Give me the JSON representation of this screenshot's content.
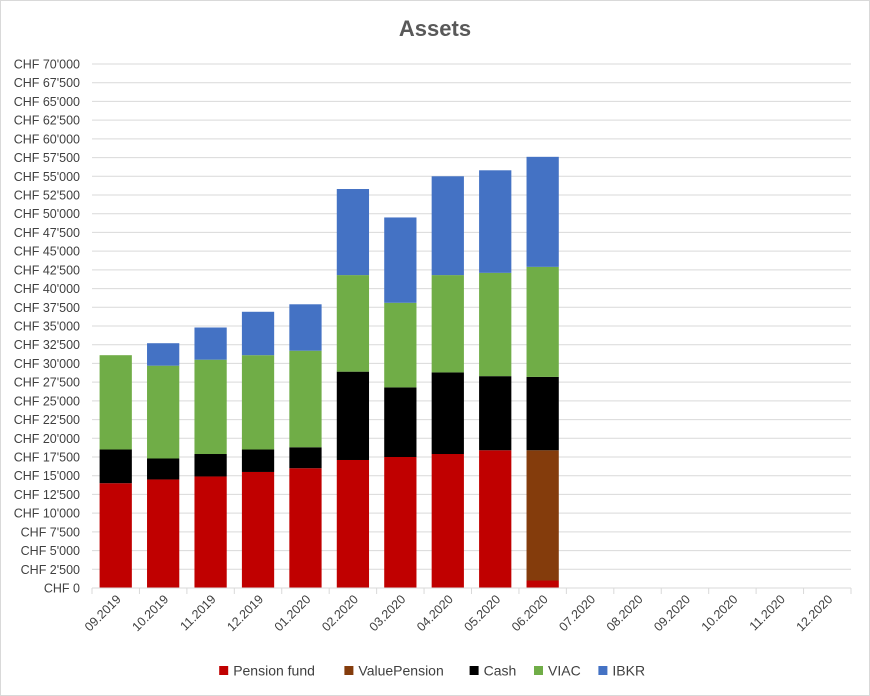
{
  "chart_data": {
    "type": "bar",
    "stacked": true,
    "title": "Assets",
    "xlabel": "",
    "ylabel": "",
    "ylim": [
      0,
      70000
    ],
    "y_ticks": [
      0,
      2500,
      5000,
      7500,
      10000,
      12500,
      15000,
      17500,
      20000,
      22500,
      25000,
      27500,
      30000,
      32500,
      35000,
      37500,
      40000,
      42500,
      45000,
      47500,
      50000,
      52500,
      55000,
      57500,
      60000,
      62500,
      65000,
      67500,
      70000
    ],
    "y_tick_labels": [
      "CHF 0",
      "CHF 2'500",
      "CHF 5'000",
      "CHF 7'500",
      "CHF 10'000",
      "CHF 12'500",
      "CHF 15'000",
      "CHF 17'500",
      "CHF 20'000",
      "CHF 22'500",
      "CHF 25'000",
      "CHF 27'500",
      "CHF 30'000",
      "CHF 32'500",
      "CHF 35'000",
      "CHF 37'500",
      "CHF 40'000",
      "CHF 42'500",
      "CHF 45'000",
      "CHF 47'500",
      "CHF 50'000",
      "CHF 52'500",
      "CHF 55'000",
      "CHF 57'500",
      "CHF 60'000",
      "CHF 62'500",
      "CHF 65'000",
      "CHF 67'500",
      "CHF 70'000"
    ],
    "categories": [
      "09.2019",
      "10.2019",
      "11.2019",
      "12.2019",
      "01.2020",
      "02.2020",
      "03.2020",
      "04.2020",
      "05.2020",
      "06.2020",
      "07.2020",
      "08.2020",
      "09.2020",
      "10.2020",
      "11.2020",
      "12.2020"
    ],
    "grid": true,
    "legend_position": "bottom",
    "series": [
      {
        "name": "Pension fund",
        "color": "#c00000",
        "values": [
          14000,
          14500,
          14900,
          15500,
          16000,
          17100,
          17500,
          17900,
          18400,
          1000,
          null,
          null,
          null,
          null,
          null,
          null
        ]
      },
      {
        "name": "ValuePension",
        "color": "#843c0c",
        "values": [
          0,
          0,
          0,
          0,
          0,
          0,
          0,
          0,
          0,
          17400,
          null,
          null,
          null,
          null,
          null,
          null
        ]
      },
      {
        "name": "Cash",
        "color": "#000000",
        "values": [
          4500,
          2800,
          3000,
          3000,
          2800,
          11800,
          9300,
          10900,
          9900,
          9800,
          null,
          null,
          null,
          null,
          null,
          null
        ]
      },
      {
        "name": "VIAC",
        "color": "#70ad47",
        "values": [
          12600,
          12400,
          12600,
          12600,
          12900,
          12900,
          11300,
          13000,
          13800,
          14700,
          null,
          null,
          null,
          null,
          null,
          null
        ]
      },
      {
        "name": "IBKR",
        "color": "#4472c4",
        "values": [
          0,
          3000,
          4300,
          5800,
          6200,
          11500,
          11400,
          13200,
          13700,
          14700,
          null,
          null,
          null,
          null,
          null,
          null
        ]
      }
    ]
  }
}
